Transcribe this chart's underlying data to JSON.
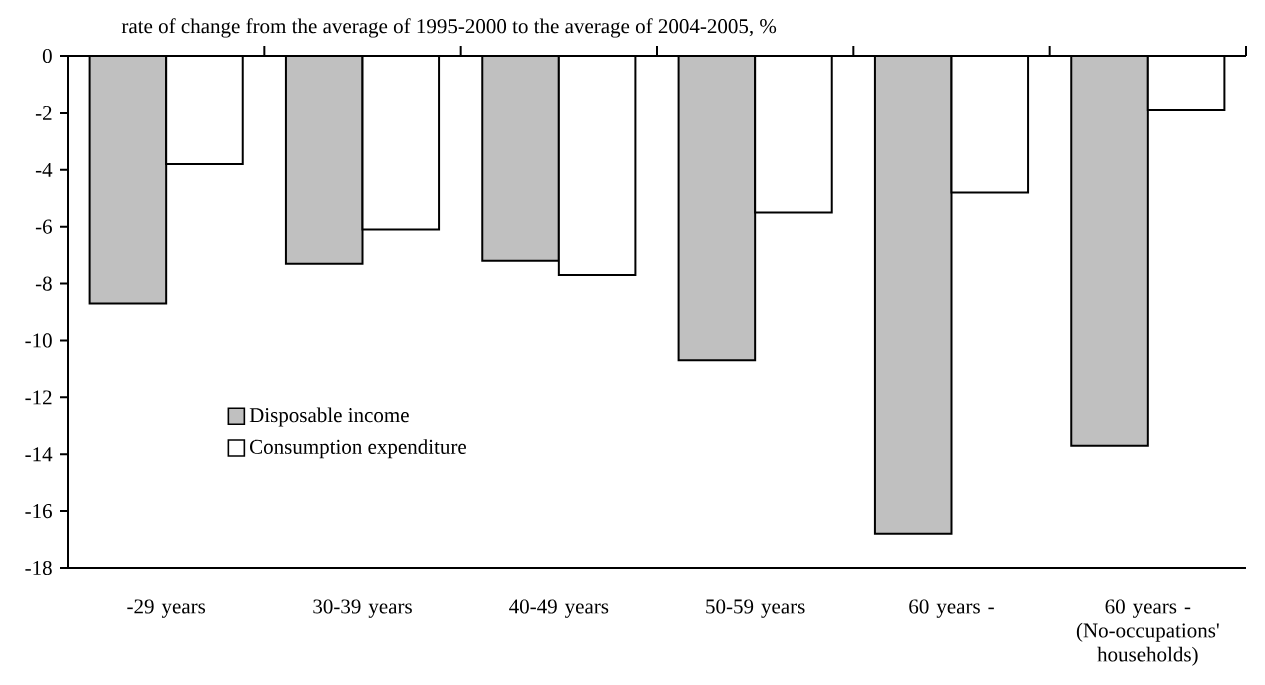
{
  "chart_data": {
    "type": "bar",
    "ylabel": "rate of change from the average of 1995-2000 to the average of 2004-2005,  %",
    "categories": [
      "-29 years",
      "30-39 years",
      "40-49 years",
      "50-59 years",
      "60 years -",
      "60 years - (No-occupations' households)"
    ],
    "series": [
      {
        "name": "Disposable income",
        "color": "#c0c0c0",
        "values": [
          -8.7,
          -7.3,
          -7.2,
          -10.7,
          -16.8,
          -13.7
        ]
      },
      {
        "name": "Consumption expenditure",
        "color": "#ffffff",
        "values": [
          -3.8,
          -6.1,
          -7.7,
          -5.5,
          -4.8,
          -1.9
        ]
      }
    ],
    "ylim": [
      -18,
      0
    ],
    "yticks": [
      0,
      -2,
      -4,
      -6,
      -8,
      -10,
      -12,
      -14,
      -16,
      -18
    ],
    "grid": false,
    "legend": "bottom left"
  }
}
